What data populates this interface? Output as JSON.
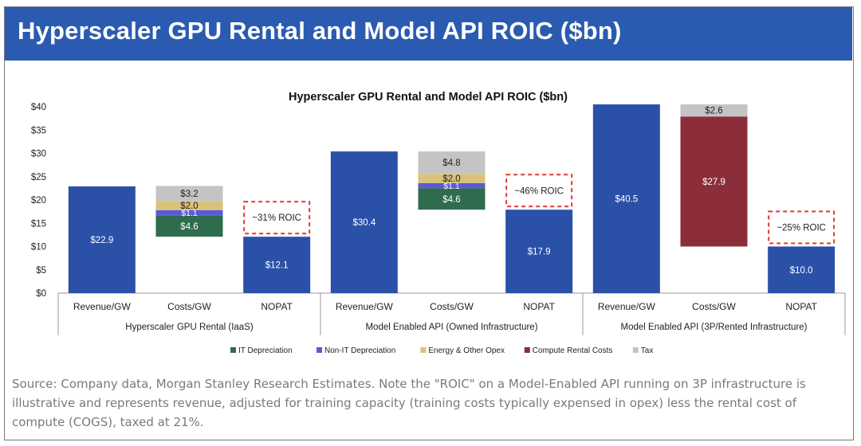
{
  "header": {
    "title": "Hyperscaler GPU Rental and Model API ROIC ($bn)"
  },
  "source_note": "Source: Company data, Morgan Stanley Research Estimates. Note the \"ROIC\" on a Model-Enabled API running on 3P infrastructure is illustrative and represents revenue, adjusted for training capacity (training costs typically expensed in opex) less the rental cost of compute (COGS), taxed at 21%.",
  "colors": {
    "revenue": "#2b50a8",
    "it_depreciation": "#2f6b4d",
    "non_it_depreciation": "#5a5ad6",
    "energy_other_opex": "#d9c27a",
    "compute_rental": "#8c2e3a",
    "tax": "#c4c4c4",
    "roic_box": "#e0382e",
    "banner": "#2b5bb0"
  },
  "chart_data": {
    "type": "bar",
    "subtype": "waterfall-stacked",
    "title": "Hyperscaler GPU Rental and Model API ROIC ($bn)",
    "ylim": [
      0,
      40
    ],
    "yticks": [
      "$0",
      "$5",
      "$10",
      "$15",
      "$20",
      "$25",
      "$30",
      "$35",
      "$40"
    ],
    "ytick_values": [
      0,
      5,
      10,
      15,
      20,
      25,
      30,
      35,
      40
    ],
    "grid": false,
    "legend_position": "bottom",
    "legend": [
      {
        "key": "it_depreciation",
        "label": "IT Depreciation"
      },
      {
        "key": "non_it_depreciation",
        "label": "Non-IT Depreciation"
      },
      {
        "key": "energy_other_opex",
        "label": "Energy & Other Opex"
      },
      {
        "key": "compute_rental",
        "label": "Compute Rental Costs"
      },
      {
        "key": "tax",
        "label": "Tax"
      }
    ],
    "groups": [
      {
        "label": "Hyperscaler GPU Rental (IaaS)",
        "bars": [
          {
            "label": "Revenue/GW",
            "kind": "total",
            "base": 0,
            "segments": [
              {
                "key": "revenue",
                "value": 22.9,
                "text": "$22.9"
              }
            ]
          },
          {
            "label": "Costs/GW",
            "kind": "cost",
            "base": 12.1,
            "segments": [
              {
                "key": "it_depreciation",
                "value": 4.6,
                "text": "$4.6"
              },
              {
                "key": "non_it_depreciation",
                "value": 1.1,
                "text": "$1.1"
              },
              {
                "key": "energy_other_opex",
                "value": 2.0,
                "text": "$2.0"
              },
              {
                "key": "tax",
                "value": 3.2,
                "text": "$3.2"
              }
            ]
          },
          {
            "label": "NOPAT",
            "kind": "total",
            "base": 0,
            "segments": [
              {
                "key": "revenue",
                "value": 12.1,
                "text": "$12.1"
              }
            ],
            "roic": "~31% ROIC"
          }
        ]
      },
      {
        "label": "Model Enabled API (Owned Infrastructure)",
        "bars": [
          {
            "label": "Revenue/GW",
            "kind": "total",
            "base": 0,
            "segments": [
              {
                "key": "revenue",
                "value": 30.4,
                "text": "$30.4"
              }
            ]
          },
          {
            "label": "Costs/GW",
            "kind": "cost",
            "base": 17.9,
            "segments": [
              {
                "key": "it_depreciation",
                "value": 4.6,
                "text": "$4.6"
              },
              {
                "key": "non_it_depreciation",
                "value": 1.1,
                "text": "$1.1"
              },
              {
                "key": "energy_other_opex",
                "value": 2.0,
                "text": "$2.0"
              },
              {
                "key": "tax",
                "value": 4.8,
                "text": "$4.8"
              }
            ]
          },
          {
            "label": "NOPAT",
            "kind": "total",
            "base": 0,
            "segments": [
              {
                "key": "revenue",
                "value": 17.9,
                "text": "$17.9"
              }
            ],
            "roic": "~46% ROIC"
          }
        ]
      },
      {
        "label": "Model Enabled API (3P/Rented Infrastructure)",
        "bars": [
          {
            "label": "Revenue/GW",
            "kind": "total",
            "base": 0,
            "segments": [
              {
                "key": "revenue",
                "value": 40.5,
                "text": "$40.5"
              }
            ]
          },
          {
            "label": "Costs/GW",
            "kind": "cost",
            "base": 10.0,
            "segments": [
              {
                "key": "compute_rental",
                "value": 27.9,
                "text": "$27.9"
              },
              {
                "key": "tax",
                "value": 2.6,
                "text": "$2.6"
              }
            ]
          },
          {
            "label": "NOPAT",
            "kind": "total",
            "base": 0,
            "segments": [
              {
                "key": "revenue",
                "value": 10.0,
                "text": "$10.0"
              }
            ],
            "roic": "~25% ROIC"
          }
        ]
      }
    ]
  }
}
